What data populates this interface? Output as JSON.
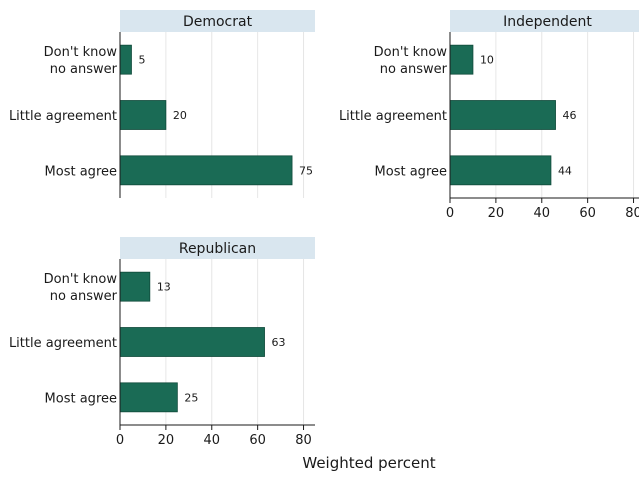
{
  "chart_data": {
    "type": "bar",
    "orientation": "horizontal",
    "facet_layout": "2x2",
    "xlabel": "Weighted percent",
    "xlim": [
      0,
      85
    ],
    "xticks": [
      0,
      20,
      40,
      60,
      80
    ],
    "grid": true,
    "bar_color": "#1a6b55",
    "strip_color": "#d9e6ef",
    "categories": [
      [
        "Don't know",
        "no answer"
      ],
      [
        "Little agreement"
      ],
      [
        "Most agree"
      ]
    ],
    "panels": [
      {
        "title": "Democrat",
        "values": [
          5,
          20,
          75
        ],
        "show_x_axis": false
      },
      {
        "title": "Independent",
        "values": [
          10,
          46,
          44
        ],
        "show_x_axis": true
      },
      {
        "title": "Republican",
        "values": [
          13,
          63,
          25
        ],
        "show_x_axis": true
      }
    ]
  }
}
